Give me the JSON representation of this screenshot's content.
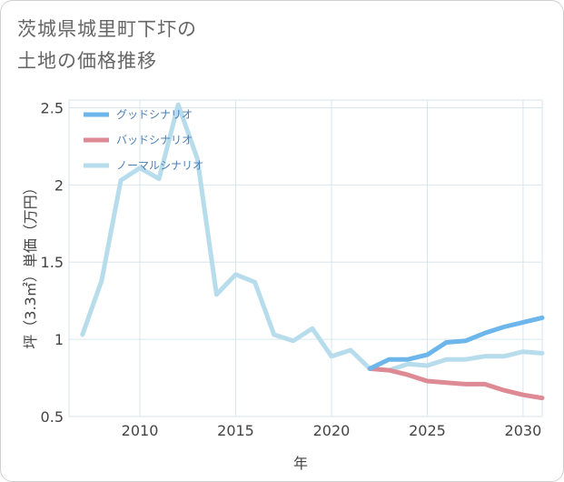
{
  "title_lines": [
    "茨城県城里町下圷の",
    "土地の価格推移"
  ],
  "chart_data": {
    "type": "line",
    "xlabel": "年",
    "ylabel": "坪（3.3㎡）単価（万円）",
    "xlim": [
      2006.3,
      2031
    ],
    "ylim": [
      0.5,
      2.55
    ],
    "xticks": [
      2010,
      2015,
      2020,
      2025,
      2030
    ],
    "yticks": [
      0.5,
      1,
      1.5,
      2,
      2.5
    ],
    "ytick_labels": [
      "0.5",
      "1",
      "1.5",
      "2",
      "2.5"
    ],
    "grid": true,
    "legend_position": "top-left",
    "series": [
      {
        "name": "グッドシナリオ",
        "color": "#6cb6ec",
        "x": [
          2022,
          2023,
          2024,
          2025,
          2026,
          2027,
          2028,
          2029,
          2030,
          2031
        ],
        "y": [
          0.81,
          0.87,
          0.87,
          0.9,
          0.98,
          0.99,
          1.04,
          1.08,
          1.11,
          1.14
        ]
      },
      {
        "name": "バッドシナリオ",
        "color": "#de8a94",
        "x": [
          2022,
          2023,
          2024,
          2025,
          2026,
          2027,
          2028,
          2029,
          2030,
          2031
        ],
        "y": [
          0.81,
          0.8,
          0.77,
          0.73,
          0.72,
          0.71,
          0.71,
          0.67,
          0.64,
          0.62
        ]
      },
      {
        "name": "ノーマルシナリオ",
        "color": "#b7dcec",
        "x": [
          2007,
          2008,
          2009,
          2010,
          2011,
          2012,
          2013,
          2014,
          2015,
          2016,
          2017,
          2018,
          2019,
          2020,
          2021,
          2022,
          2023,
          2024,
          2025,
          2026,
          2027,
          2028,
          2029,
          2030,
          2031
        ],
        "y": [
          1.03,
          1.38,
          2.03,
          2.11,
          2.04,
          2.52,
          2.17,
          1.29,
          1.42,
          1.37,
          1.03,
          0.99,
          1.07,
          0.89,
          0.93,
          0.81,
          0.8,
          0.84,
          0.83,
          0.87,
          0.87,
          0.89,
          0.89,
          0.92,
          0.91
        ]
      }
    ]
  }
}
